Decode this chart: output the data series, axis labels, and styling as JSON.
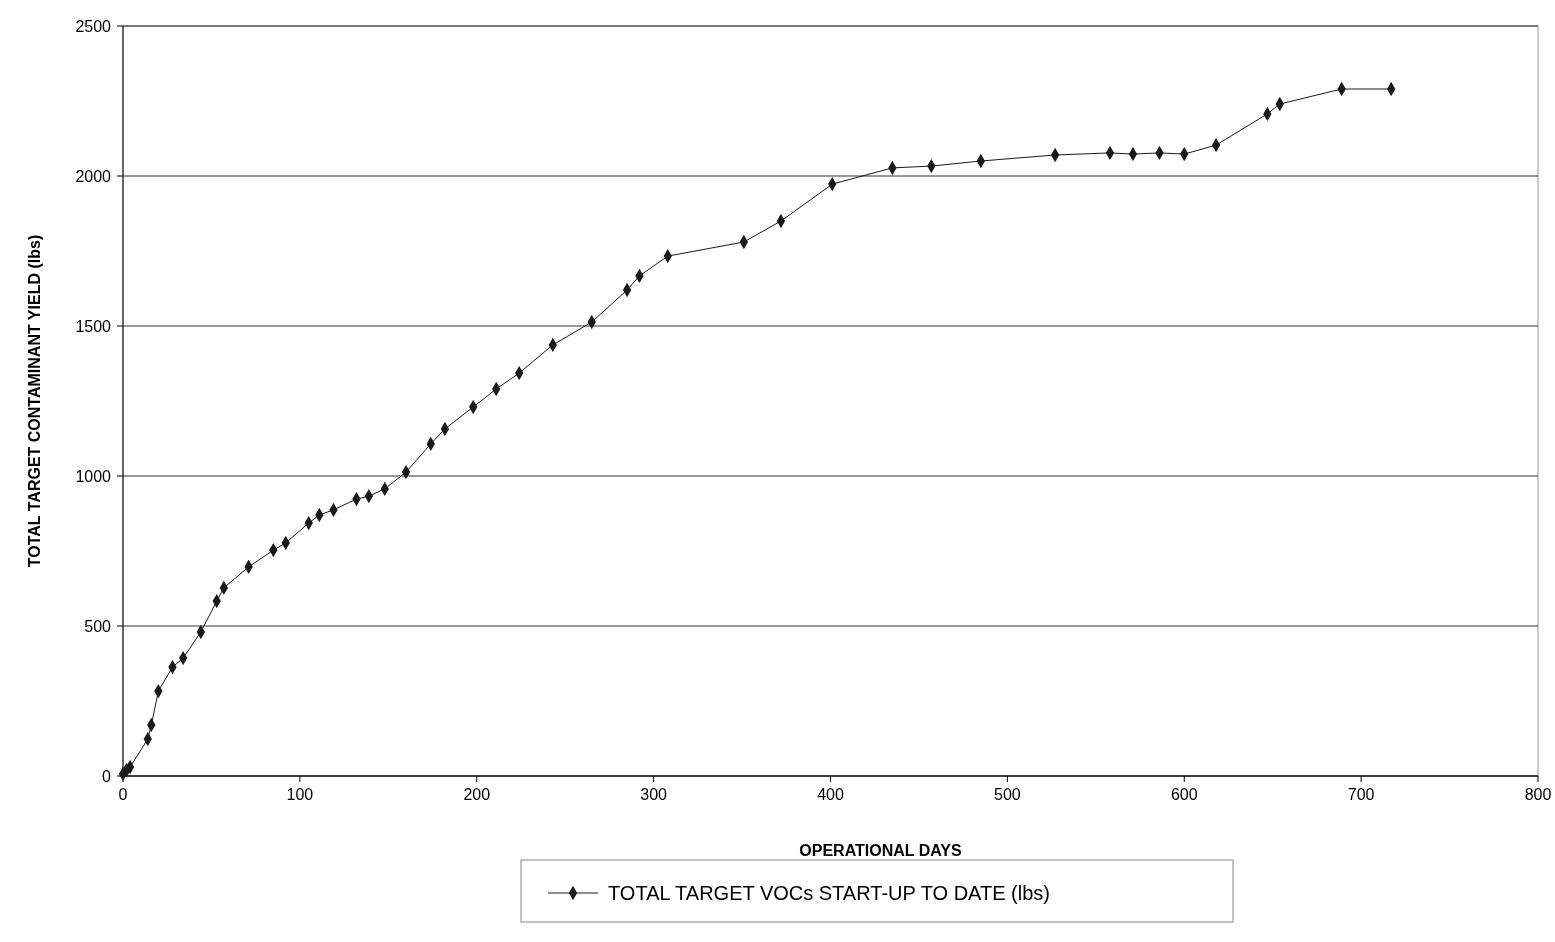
{
  "chart_data": {
    "type": "line",
    "xlabel": "OPERATIONAL DAYS",
    "ylabel": "TOTAL TARGET CONTAMINANT YIELD (lbs)",
    "xlim": [
      0,
      800
    ],
    "xticks": [
      0,
      100,
      200,
      300,
      400,
      500,
      600,
      700,
      800
    ],
    "ylim": [
      0,
      2500
    ],
    "yticks": [
      0,
      500,
      1000,
      1500,
      2000,
      2500
    ],
    "grid": "y",
    "legend": "bottom",
    "marker": "diamond",
    "line_style": "solid",
    "series": [
      {
        "name": "TOTAL TARGET VOCs START-UP TO DATE (lbs)",
        "color": "#1a1a1a",
        "x": [
          0,
          2,
          4,
          14,
          16,
          20,
          28,
          34,
          44,
          53,
          57,
          71,
          85,
          92,
          105,
          111,
          119,
          132,
          139,
          148,
          160,
          174,
          182,
          198,
          211,
          224,
          243,
          265,
          285,
          292,
          308,
          351,
          372,
          401,
          435,
          457,
          485,
          527,
          558,
          571,
          586,
          600,
          618,
          647,
          654,
          689,
          717
        ],
        "values": [
          7,
          20,
          30,
          123,
          170,
          283,
          363,
          393,
          480,
          583,
          627,
          697,
          753,
          777,
          843,
          870,
          887,
          923,
          933,
          957,
          1013,
          1107,
          1157,
          1230,
          1290,
          1343,
          1437,
          1513,
          1620,
          1667,
          1733,
          1780,
          1850,
          1973,
          2027,
          2033,
          2050,
          2070,
          2077,
          2073,
          2077,
          2073,
          2103,
          2207,
          2240,
          2290,
          2290
        ]
      }
    ]
  }
}
